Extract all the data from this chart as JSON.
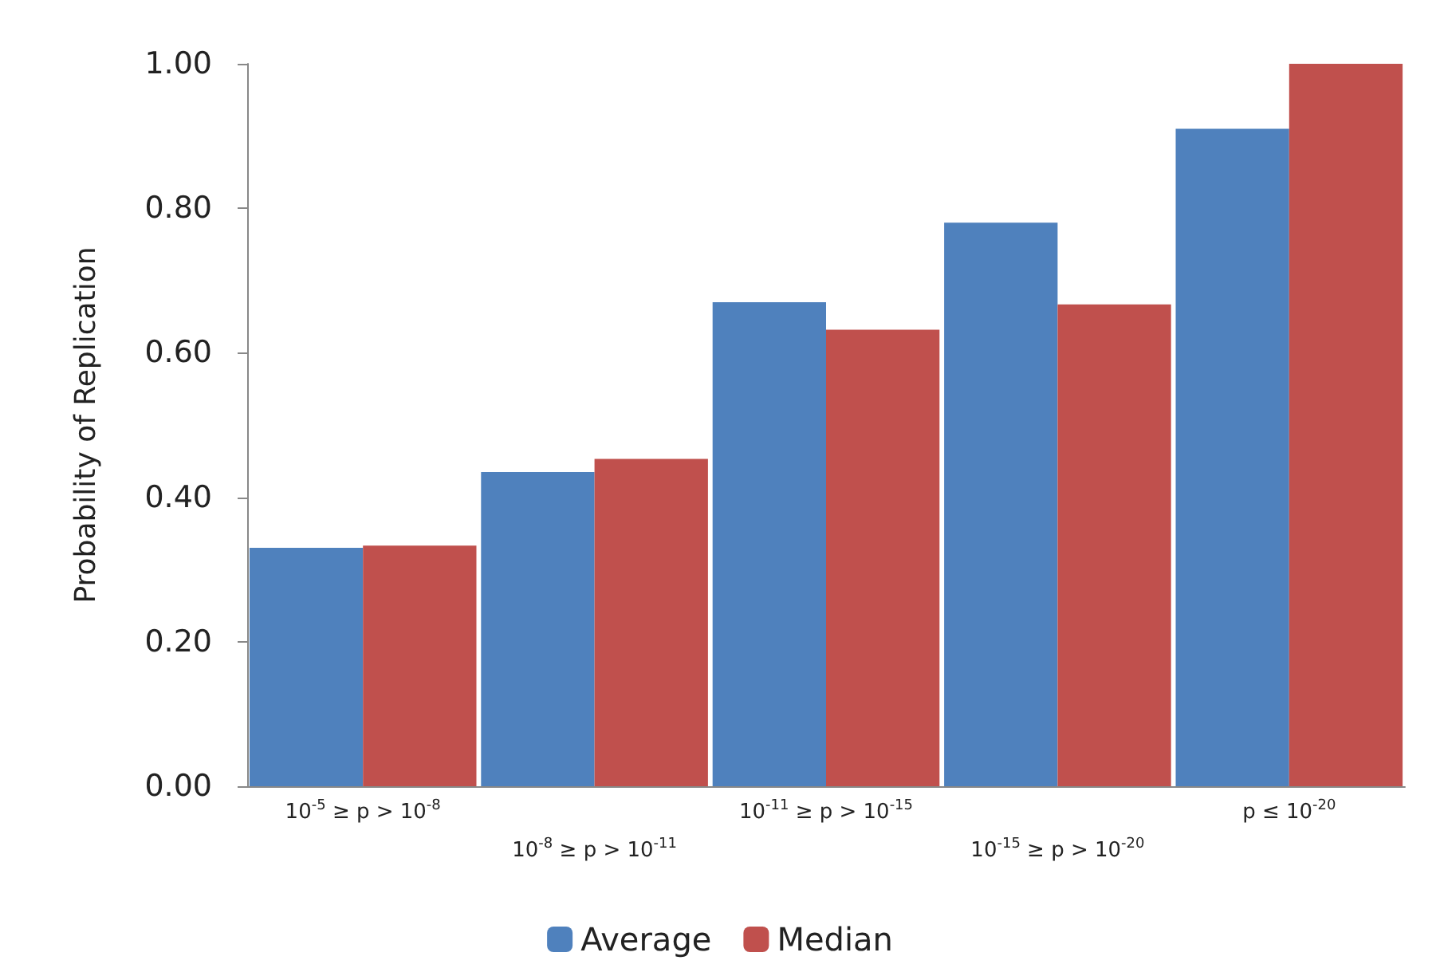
{
  "chart_data": {
    "type": "bar",
    "ylabel": "Probability of Replication",
    "categories": [
      "10$^{-5}$ ≥ p > 10$^{-8}$",
      "10$^{-8}$ ≥ p > 10$^{-11}$",
      "10$^{-11}$ ≥ p > 10$^{-15}$",
      "10$^{-15}$ ≥ p > 10$^{-20}$",
      "p ≤ 10$^{-20}$"
    ],
    "series": [
      {
        "name": "Average",
        "color": "#4f81bd",
        "values": [
          0.33,
          0.435,
          0.67,
          0.78,
          0.91
        ]
      },
      {
        "name": "Median",
        "color": "#c0504d",
        "values": [
          0.333,
          0.453,
          0.632,
          0.667,
          1.0
        ]
      }
    ],
    "ylim": [
      0,
      1
    ],
    "yticks": [
      {
        "value": 0,
        "label": "0.00"
      },
      {
        "value": 0.2,
        "label": "0.20"
      },
      {
        "value": 0.4,
        "label": "0.40"
      },
      {
        "value": 0.6,
        "label": "0.60"
      },
      {
        "value": 0.8,
        "label": "0.80"
      },
      {
        "value": 1,
        "label": "1.00"
      }
    ],
    "grid": false,
    "legend": "bottom"
  }
}
